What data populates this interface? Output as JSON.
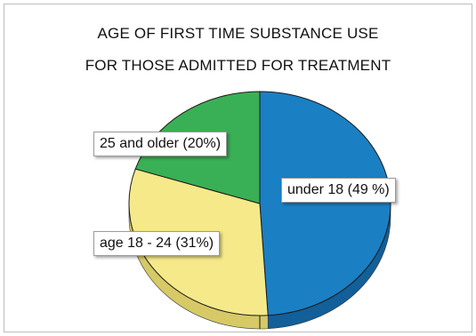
{
  "chart_data": {
    "type": "pie",
    "title": "AGE OF FIRST TIME SUBSTANCE USE",
    "subtitle": "FOR THOSE ADMITTED FOR TREATMENT",
    "slices": [
      {
        "category": "under 18",
        "value": 49,
        "label": "under 18 (49 %)",
        "color": "#1b7fc4",
        "side_color": "#125f99"
      },
      {
        "category": "age 18 - 24",
        "value": 31,
        "label": "age 18 - 24 (31%)",
        "color": "#f5e98a",
        "side_color": "#d6c966"
      },
      {
        "category": "25 and older",
        "value": 20,
        "label": "25 and older (20%)",
        "color": "#39b055",
        "side_color": "#2a8a40"
      }
    ]
  }
}
